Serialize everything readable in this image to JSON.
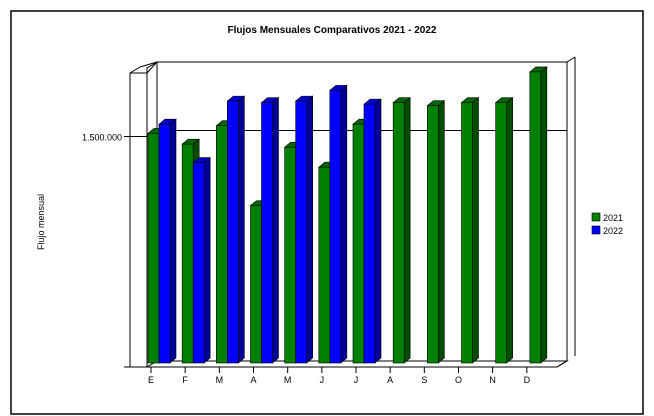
{
  "chart_data": {
    "type": "bar",
    "title": "Flujos Mensuales Comparativos 2021 - 2022",
    "xlabel": "",
    "ylabel": "Flujo mensual",
    "categories": [
      "E",
      "F",
      "M",
      "A",
      "M",
      "J",
      "J",
      "A",
      "S",
      "O",
      "N",
      "D"
    ],
    "yticks": [
      {
        "value": 1500000,
        "label": "1.500.000"
      }
    ],
    "ylim": [
      0,
      1900000
    ],
    "grid": true,
    "legend_position": "right",
    "series": [
      {
        "name": "2021",
        "color": "#008000",
        "values": [
          1520000,
          1450000,
          1570000,
          1050000,
          1430000,
          1300000,
          1580000,
          1720000,
          1700000,
          1720000,
          1720000,
          1920000
        ]
      },
      {
        "name": "2022",
        "color": "#0000FF",
        "values": [
          1580000,
          1330000,
          1730000,
          1720000,
          1730000,
          1800000,
          1710000,
          null,
          null,
          null,
          null,
          null
        ]
      }
    ]
  }
}
